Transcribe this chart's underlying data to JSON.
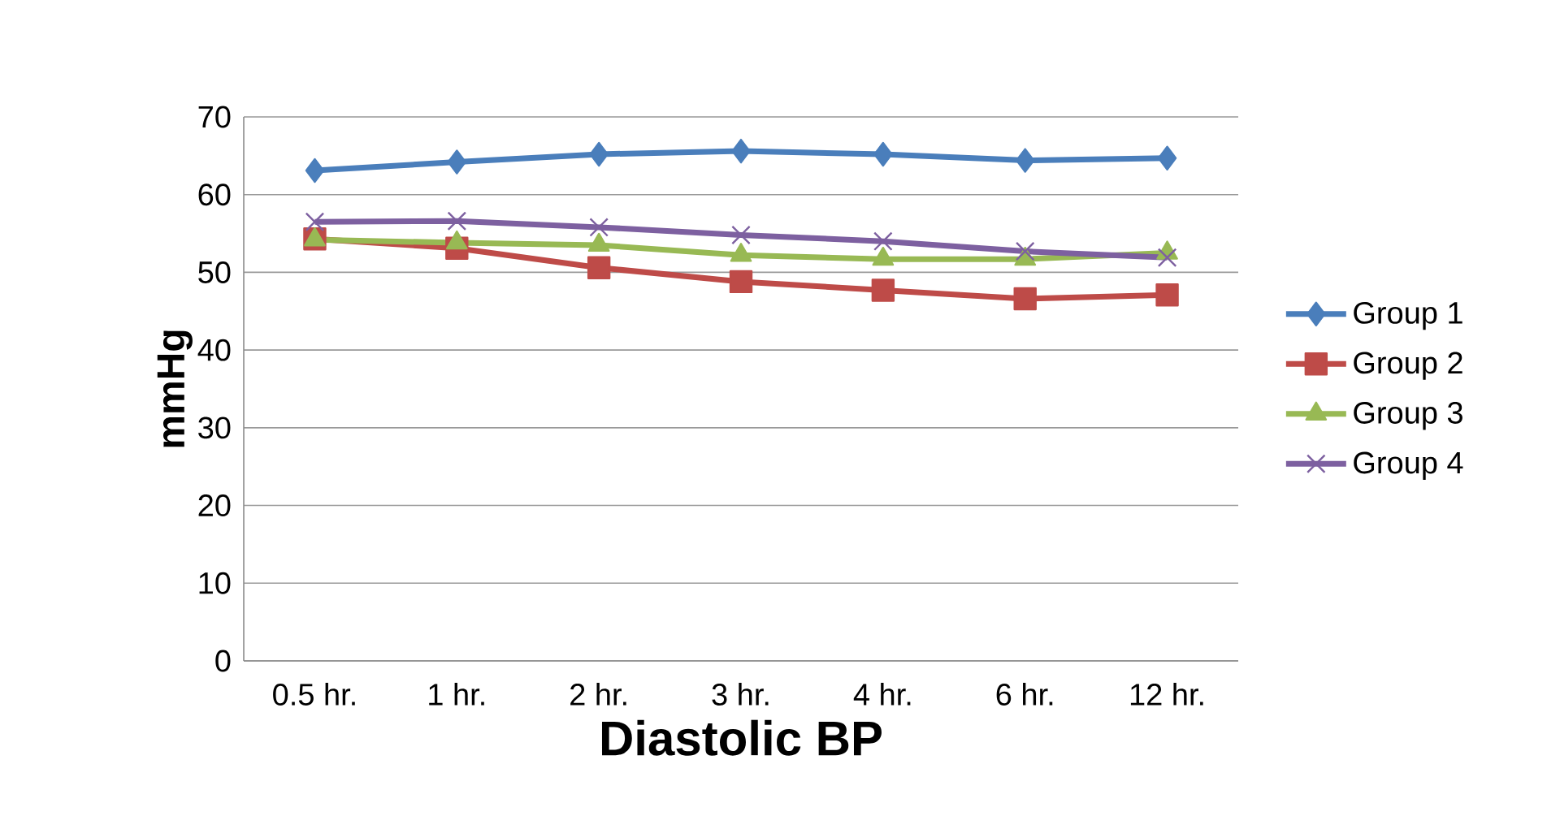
{
  "chart_data": {
    "type": "line",
    "xlabel": "Diastolic BP",
    "ylabel": "mmHg",
    "categories": [
      "0.5 hr.",
      "1 hr.",
      "2 hr.",
      "3 hr.",
      "4 hr.",
      "6 hr.",
      "12 hr."
    ],
    "series": [
      {
        "name": "Group 1",
        "color": "#4a7ebb",
        "marker": "diamond",
        "values": [
          63.1,
          64.2,
          65.2,
          65.6,
          65.2,
          64.4,
          64.7
        ]
      },
      {
        "name": "Group 2",
        "color": "#be4b48",
        "marker": "square",
        "values": [
          54.3,
          53.1,
          50.6,
          48.8,
          47.7,
          46.6,
          47.1
        ]
      },
      {
        "name": "Group 3",
        "color": "#98b954",
        "marker": "triangle",
        "values": [
          54.2,
          53.8,
          53.5,
          52.2,
          51.7,
          51.7,
          52.5
        ]
      },
      {
        "name": "Group 4",
        "color": "#7d60a0",
        "marker": "cross",
        "values": [
          56.5,
          56.6,
          55.8,
          54.8,
          54.0,
          52.7,
          51.9
        ]
      }
    ],
    "ylim": [
      0,
      70
    ],
    "yticks": [
      0,
      10,
      20,
      30,
      40,
      50,
      60,
      70
    ],
    "grid": "y",
    "legend": "right"
  }
}
